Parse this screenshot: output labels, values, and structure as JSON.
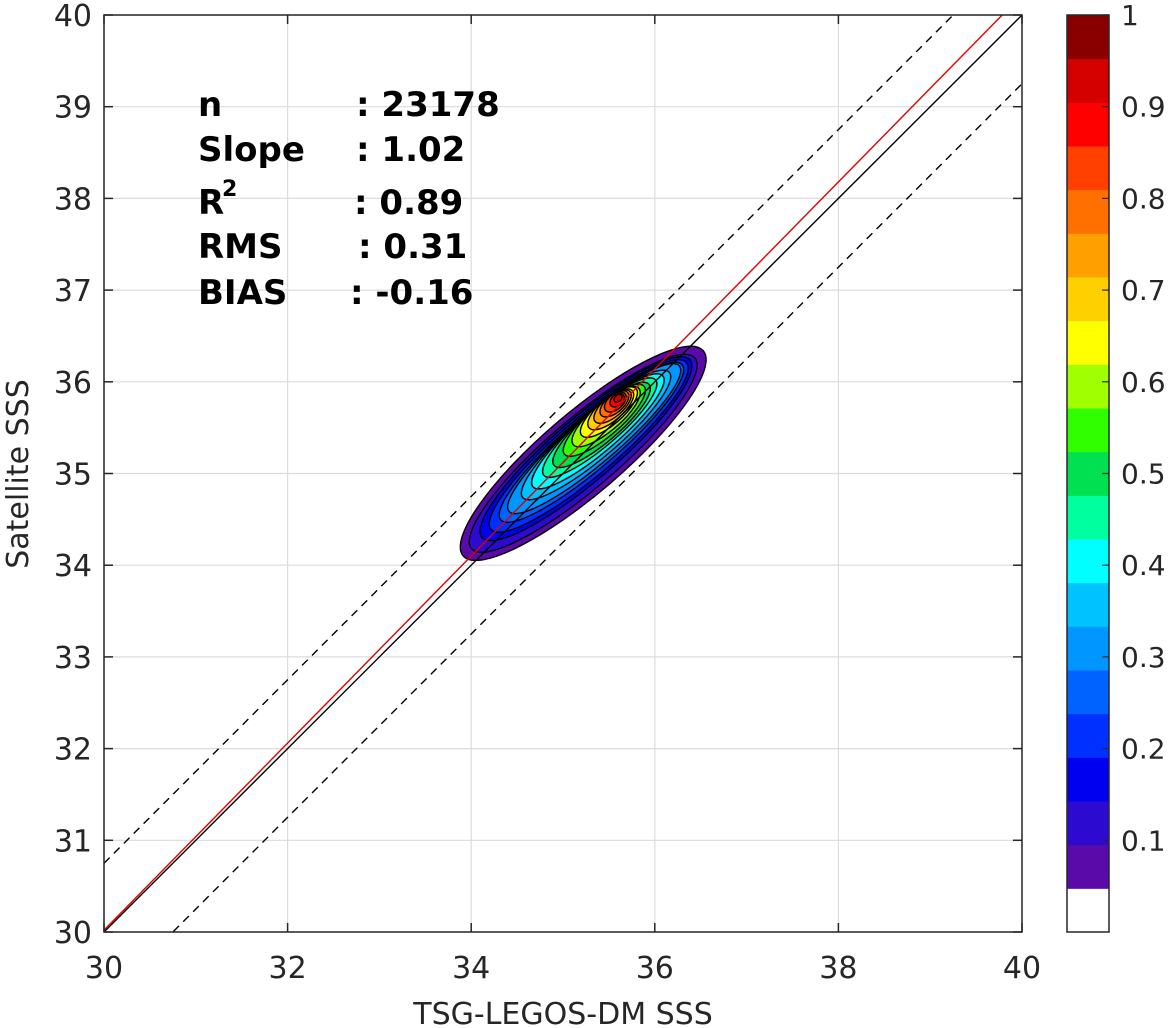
{
  "chart_data": {
    "type": "heatmap",
    "subtype": "filled-contour density scatter",
    "xlabel": "TSG-LEGOS-DM SSS",
    "ylabel": "Satellite SSS",
    "xlim": [
      30,
      40
    ],
    "ylim": [
      30,
      40
    ],
    "xticks": [
      30,
      32,
      34,
      36,
      38,
      40
    ],
    "yticks": [
      30,
      31,
      32,
      33,
      34,
      35,
      36,
      37,
      38,
      39,
      40
    ],
    "grid": true,
    "stats": [
      {
        "label": "n",
        "value": ": 23178"
      },
      {
        "label": "Slope",
        "value": ": 1.02"
      },
      {
        "label": "R",
        "sup": "2",
        "value": ": 0.89"
      },
      {
        "label": "RMS",
        "value": ": 0.31"
      },
      {
        "label": "BIAS",
        "value": ": -0.16"
      }
    ],
    "lines": [
      {
        "role": "identity",
        "color": "#000000",
        "style": "solid",
        "points": [
          [
            30,
            30
          ],
          [
            40,
            40
          ]
        ]
      },
      {
        "role": "regression",
        "color": "#e00000",
        "style": "solid",
        "points": [
          [
            30,
            30.02
          ],
          [
            40,
            40.22
          ]
        ]
      },
      {
        "role": "upper-bound",
        "color": "#000000",
        "style": "dashed",
        "points": [
          [
            30,
            30.75
          ],
          [
            40,
            40.75
          ]
        ]
      },
      {
        "role": "lower-bound",
        "color": "#000000",
        "style": "dashed",
        "points": [
          [
            30,
            29.25
          ],
          [
            40,
            39.25
          ]
        ]
      }
    ],
    "density": {
      "peak": [
        35.6,
        35.82
      ],
      "axis_direction": [
        0.76,
        0.65
      ],
      "levels": [
        {
          "value": 0.05,
          "cx": 35.22,
          "cy": 35.22,
          "a": 1.72,
          "b": 0.44
        },
        {
          "value": 0.1,
          "cx": 35.22,
          "cy": 35.22,
          "a": 1.6,
          "b": 0.38
        },
        {
          "value": 0.15,
          "cx": 35.25,
          "cy": 35.27,
          "a": 1.49,
          "b": 0.34
        },
        {
          "value": 0.2,
          "cx": 35.28,
          "cy": 35.3,
          "a": 1.4,
          "b": 0.31
        },
        {
          "value": 0.25,
          "cx": 35.31,
          "cy": 35.34,
          "a": 1.3,
          "b": 0.28
        },
        {
          "value": 0.3,
          "cx": 35.34,
          "cy": 35.38,
          "a": 1.22,
          "b": 0.26
        },
        {
          "value": 0.35,
          "cx": 35.36,
          "cy": 35.42,
          "a": 1.05,
          "b": 0.24
        },
        {
          "value": 0.4,
          "cx": 35.38,
          "cy": 35.46,
          "a": 0.93,
          "b": 0.22
        },
        {
          "value": 0.45,
          "cx": 35.4,
          "cy": 35.5,
          "a": 0.8,
          "b": 0.2
        },
        {
          "value": 0.5,
          "cx": 35.42,
          "cy": 35.53,
          "a": 0.68,
          "b": 0.185
        },
        {
          "value": 0.55,
          "cx": 35.45,
          "cy": 35.58,
          "a": 0.57,
          "b": 0.17
        },
        {
          "value": 0.6,
          "cx": 35.47,
          "cy": 35.62,
          "a": 0.47,
          "b": 0.155
        },
        {
          "value": 0.65,
          "cx": 35.5,
          "cy": 35.67,
          "a": 0.39,
          "b": 0.14
        },
        {
          "value": 0.7,
          "cx": 35.52,
          "cy": 35.7,
          "a": 0.31,
          "b": 0.125
        },
        {
          "value": 0.75,
          "cx": 35.54,
          "cy": 35.73,
          "a": 0.25,
          "b": 0.11
        },
        {
          "value": 0.8,
          "cx": 35.56,
          "cy": 35.76,
          "a": 0.19,
          "b": 0.095
        },
        {
          "value": 0.85,
          "cx": 35.57,
          "cy": 35.78,
          "a": 0.14,
          "b": 0.08
        },
        {
          "value": 0.9,
          "cx": 35.59,
          "cy": 35.8,
          "a": 0.09,
          "b": 0.06
        },
        {
          "value": 0.95,
          "cx": 35.6,
          "cy": 35.82,
          "a": 0.05,
          "b": 0.035
        }
      ]
    },
    "colorbar": {
      "range": [
        0,
        1
      ],
      "ticks": [
        "0.1",
        "0.2",
        "0.3",
        "0.4",
        "0.5",
        "0.6",
        "0.7",
        "0.8",
        "0.9",
        "1"
      ],
      "tick_values": [
        0.1,
        0.2,
        0.3,
        0.4,
        0.5,
        0.6,
        0.7,
        0.8,
        0.9,
        1.0
      ],
      "colors": [
        "#ffffff",
        "#5a0aa8",
        "#2d0ad0",
        "#0000f0",
        "#0030ff",
        "#0062ff",
        "#0096ff",
        "#00c2ff",
        "#00ffff",
        "#00ff9e",
        "#00e050",
        "#30ff00",
        "#a0ff00",
        "#ffff00",
        "#ffd000",
        "#ffa000",
        "#ff7000",
        "#ff4000",
        "#ff0000",
        "#d40000",
        "#8a0000"
      ]
    }
  }
}
